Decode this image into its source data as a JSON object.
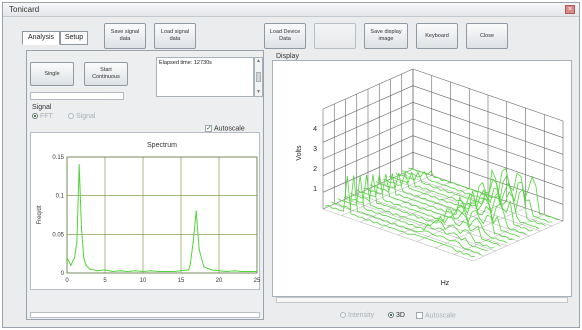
{
  "window": {
    "title": "Tonicard"
  },
  "tabs": [
    {
      "label": "Analysis"
    },
    {
      "label": "Setup"
    }
  ],
  "toolbar": {
    "save_signal": "Save signal\ndata",
    "load_signal": "Load signal\ndata",
    "load_device": "Load Device\nData",
    "blank": "",
    "save_display": "Save display\nimage",
    "keyboard": "Keyboard",
    "close": "Close"
  },
  "controls": {
    "single": "Single",
    "start_continuous": "Start\nContinuous",
    "elapsed": "Elapsed time: 12730s"
  },
  "signal": {
    "label": "Signal",
    "options": [
      {
        "label": "FFT",
        "selected": true
      },
      {
        "label": "Signal",
        "selected": false
      }
    ]
  },
  "autoscale_left": {
    "label": "Autoscale",
    "checked": true
  },
  "display": {
    "label": "Display",
    "zlabel": "Volts",
    "xlabel": "Hz"
  },
  "bottom_options": {
    "intensity": {
      "label": "Intensity",
      "selected": false
    },
    "threed": {
      "label": "3D",
      "selected": true
    },
    "autoscale": {
      "label": "Autoscale",
      "checked": false
    }
  },
  "icons": {
    "close": "close-icon",
    "scroll_up": "scroll-up-icon",
    "scroll_down": "scroll-down-icon"
  },
  "colors": {
    "trace": "#52d43a",
    "grid": "#6f8c3c"
  },
  "chart_data": [
    {
      "type": "line",
      "title": "Spectrum",
      "xlabel": "",
      "ylabel": "Freq/dt",
      "xlim": [
        0,
        25
      ],
      "ylim": [
        0,
        0.15
      ],
      "xticks": [
        "0",
        "5",
        "10",
        "15",
        "20",
        "25"
      ],
      "yticks": [
        "0",
        "0.05",
        "0.1",
        "0.15"
      ],
      "x": [
        0,
        0.5,
        1,
        1.3,
        1.6,
        1.9,
        2.2,
        2.5,
        3,
        4,
        5,
        6,
        7,
        8,
        9,
        10,
        11,
        12,
        13,
        14,
        15,
        16,
        16.2,
        16.6,
        17,
        17.4,
        18,
        19,
        20,
        21,
        22,
        23,
        24,
        25
      ],
      "y": [
        0.02,
        0.01,
        0.02,
        0.04,
        0.14,
        0.06,
        0.02,
        0.01,
        0.005,
        0.003,
        0.004,
        0.002,
        0.003,
        0.002,
        0.003,
        0.002,
        0.003,
        0.002,
        0.002,
        0.002,
        0.003,
        0.004,
        0.01,
        0.04,
        0.08,
        0.03,
        0.008,
        0.004,
        0.003,
        0.002,
        0.003,
        0.002,
        0.002,
        0.002
      ]
    }
  ]
}
